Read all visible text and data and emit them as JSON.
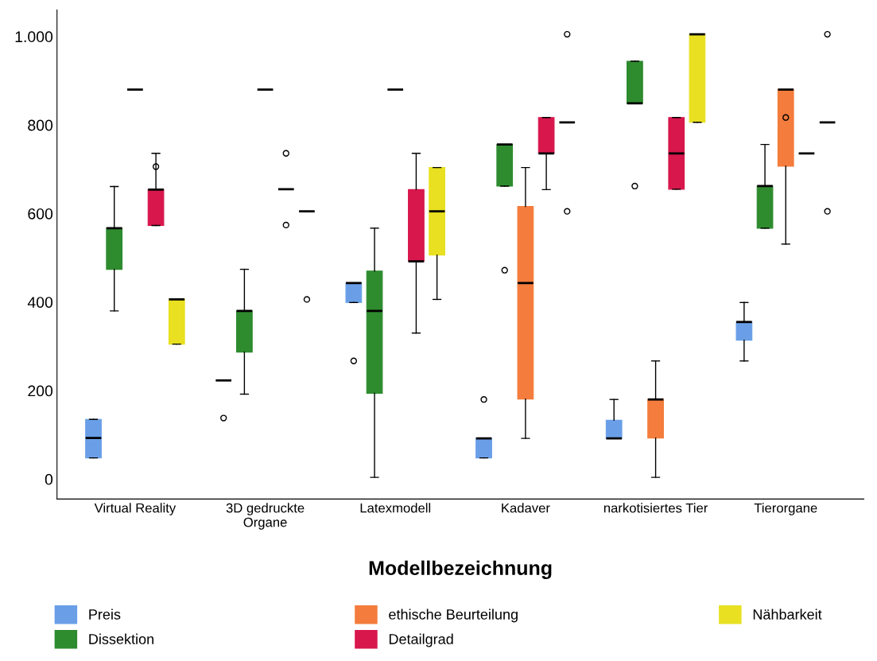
{
  "chart_data": {
    "type": "box",
    "xlabel": "Modellbezeichnung",
    "categories": [
      "Virtual Reality",
      "3D gedruckte\nOrgane",
      "Latexmodell",
      "Kadaver",
      "narkotisiertes Tier",
      "Tierorgane"
    ],
    "ylim": [
      -45,
      1060
    ],
    "yticks": [
      0,
      200,
      400,
      600,
      800,
      {
        "value": 1000,
        "label": "1.000"
      }
    ],
    "grid": false,
    "legend": "bottom",
    "series": [
      {
        "name": "Preis",
        "color": "#6a9fe8",
        "boxes": [
          {
            "low": 48,
            "q1": 48,
            "median": 93,
            "q3": 135,
            "high": 135
          },
          {
            "low": 223,
            "q1": 223,
            "median": 223,
            "q3": 223,
            "high": 223,
            "outliers": [
              138
            ]
          },
          {
            "low": 399,
            "q1": 399,
            "median": 443,
            "q3": 443,
            "high": 443,
            "outliers": [
              267
            ]
          },
          {
            "low": 48,
            "q1": 48,
            "median": 92,
            "q3": 92,
            "high": 92,
            "outliers": [
              180
            ]
          },
          {
            "low": 92,
            "q1": 92,
            "median": 92,
            "q3": 133,
            "high": 180
          },
          {
            "low": 267,
            "q1": 314,
            "median": 355,
            "q3": 355,
            "high": 399
          }
        ]
      },
      {
        "name": "Dissektion",
        "color": "#2e8b2e",
        "boxes": [
          {
            "low": 380,
            "q1": 474,
            "median": 567,
            "q3": 567,
            "high": 661
          },
          {
            "low": 192,
            "q1": 287,
            "median": 380,
            "q3": 380,
            "high": 474
          },
          {
            "low": 4,
            "q1": 194,
            "median": 380,
            "q3": 470,
            "high": 567
          },
          {
            "low": 662,
            "q1": 662,
            "median": 756,
            "q3": 756,
            "high": 756,
            "outliers": [
              472
            ]
          },
          {
            "low": 849,
            "q1": 849,
            "median": 849,
            "q3": 944,
            "high": 944,
            "outliers": [
              662
            ]
          },
          {
            "low": 567,
            "q1": 567,
            "median": 662,
            "q3": 662,
            "high": 756
          }
        ]
      },
      {
        "name": "ethische Beurteilung",
        "color": "#f47c3c",
        "boxes": [
          {
            "low": 880,
            "q1": 880,
            "median": 880,
            "q3": 880,
            "high": 880
          },
          {
            "low": 880,
            "q1": 880,
            "median": 880,
            "q3": 880,
            "high": 880
          },
          {
            "low": 880,
            "q1": 880,
            "median": 880,
            "q3": 880,
            "high": 880
          },
          {
            "low": 92,
            "q1": 181,
            "median": 443,
            "q3": 616,
            "high": 704
          },
          {
            "low": 4,
            "q1": 93,
            "median": 180,
            "q3": 180,
            "high": 267
          },
          {
            "low": 531,
            "q1": 707,
            "median": 880,
            "q3": 880,
            "high": 880,
            "outliers": [
              817
            ]
          }
        ]
      },
      {
        "name": "Detailgrad",
        "color": "#d8174d",
        "boxes": [
          {
            "low": 573,
            "q1": 573,
            "median": 654,
            "q3": 654,
            "high": 736,
            "outliers": [
              706
            ]
          },
          {
            "low": 655,
            "q1": 655,
            "median": 655,
            "q3": 655,
            "high": 655,
            "outliers": [
              736,
              574
            ]
          },
          {
            "low": 330,
            "q1": 492,
            "median": 492,
            "q3": 654,
            "high": 736
          },
          {
            "low": 654,
            "q1": 736,
            "median": 736,
            "q3": 817,
            "high": 817
          },
          {
            "low": 655,
            "q1": 655,
            "median": 736,
            "q3": 817,
            "high": 817
          },
          {
            "low": 736,
            "q1": 736,
            "median": 736,
            "q3": 736,
            "high": 736
          }
        ]
      },
      {
        "name": "Nähbarkeit",
        "color": "#e8e020",
        "boxes": [
          {
            "low": 305,
            "q1": 305,
            "median": 406,
            "q3": 406,
            "high": 406
          },
          {
            "low": 605,
            "q1": 605,
            "median": 605,
            "q3": 605,
            "high": 605,
            "outliers": [
              406
            ]
          },
          {
            "low": 406,
            "q1": 506,
            "median": 605,
            "q3": 704,
            "high": 704
          },
          {
            "low": 806,
            "q1": 806,
            "median": 806,
            "q3": 806,
            "high": 806,
            "outliers": [
              1005,
              605
            ]
          },
          {
            "low": 806,
            "q1": 806,
            "median": 1005,
            "q3": 1005,
            "high": 1005
          },
          {
            "low": 806,
            "q1": 806,
            "median": 806,
            "q3": 806,
            "high": 806,
            "outliers": [
              1005,
              605
            ]
          }
        ]
      }
    ]
  }
}
